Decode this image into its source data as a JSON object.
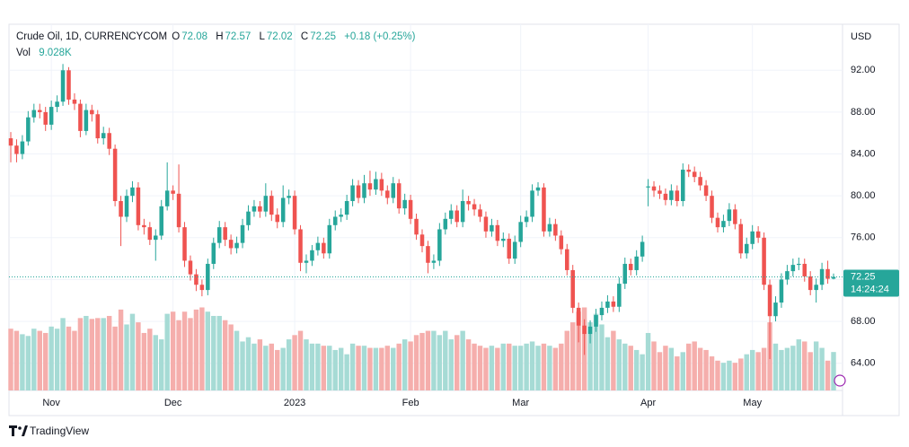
{
  "chart_data": {
    "type": "candlestick",
    "title": "Crude Oil, 1D, CURRENCYCOM",
    "ohlc_labels": [
      "O",
      "H",
      "L",
      "C"
    ],
    "change_label": "+0.18 (+0.25%)",
    "currency": "USD",
    "countdown": "14:24:24",
    "open": [
      85.5,
      84.8,
      84.0,
      85.2,
      87.5,
      88.2,
      88.0,
      86.8,
      88.5,
      89.0,
      92.0,
      89.2,
      88.8,
      86.2,
      88.2,
      87.8,
      85.5,
      86.0,
      84.5,
      79.5,
      78.0,
      80.0,
      80.8,
      77.2,
      77.0,
      75.8,
      76.2,
      79.0,
      80.5,
      80.2,
      77.0,
      73.8,
      72.5,
      71.5,
      71.0,
      73.5,
      75.5,
      77.0,
      75.8,
      75.0,
      75.5,
      77.2,
      78.5,
      79.0,
      78.5,
      80.0,
      78.2,
      77.5,
      79.8,
      80.0,
      76.8,
      73.6,
      73.8,
      74.8,
      75.5,
      74.5,
      77.2,
      78.0,
      78.2,
      79.5,
      81.0,
      79.8,
      81.2,
      80.6,
      81.6,
      80.5,
      79.8,
      81.2,
      78.8,
      79.6,
      77.8,
      76.3,
      75.2,
      73.6,
      73.8,
      76.8,
      77.8,
      78.6,
      77.5,
      79.5,
      79.2,
      78.7,
      78.0,
      76.6,
      77.2,
      75.7,
      75.9,
      74.0,
      75.6,
      77.5,
      78.0,
      80.5,
      80.8,
      76.6,
      77.3,
      76.2,
      74.9,
      72.9,
      69.3,
      67.6,
      66.8,
      67.5,
      68.6,
      69.3,
      69.9,
      69.4,
      71.6,
      73.5,
      72.9,
      74.2,
      80.8,
      80.9,
      80.5,
      80.2,
      79.6,
      80.5,
      79.5,
      82.5,
      82.3,
      81.8,
      81.0,
      80.0,
      77.9,
      77.0,
      77.6,
      78.7,
      77.3,
      74.5,
      75.4,
      76.6,
      76.0,
      71.5,
      68.5,
      69.8,
      72.0,
      72.8,
      73.4,
      73.5,
      72.3,
      71.0,
      71.5,
      73.0,
      72.08
    ],
    "high": [
      86.1,
      85.4,
      85.8,
      88.1,
      88.8,
      88.8,
      88.5,
      89.1,
      89.6,
      92.6,
      92.3,
      89.8,
      89.2,
      88.8,
      88.7,
      88.2,
      86.6,
      86.5,
      84.9,
      80.0,
      80.6,
      81.4,
      81.3,
      77.8,
      77.5,
      76.8,
      79.6,
      83.2,
      81.0,
      83.0,
      77.5,
      74.3,
      73.0,
      72.0,
      74.0,
      76.0,
      77.6,
      77.5,
      76.3,
      76.1,
      77.8,
      79.1,
      79.6,
      79.5,
      81.2,
      80.5,
      78.8,
      81.0,
      80.6,
      80.5,
      77.2,
      74.4,
      75.3,
      76.1,
      76.0,
      77.8,
      78.6,
      78.8,
      80.1,
      81.6,
      81.5,
      82.0,
      82.4,
      82.3,
      82.2,
      81.0,
      81.8,
      81.6,
      80.2,
      80.1,
      78.3,
      76.8,
      75.7,
      74.4,
      77.4,
      78.4,
      79.2,
      79.1,
      80.6,
      80.0,
      79.7,
      79.2,
      78.5,
      77.8,
      77.7,
      76.5,
      76.4,
      76.2,
      78.1,
      78.6,
      81.1,
      81.3,
      81.2,
      77.9,
      77.8,
      76.7,
      75.4,
      73.4,
      69.8,
      68.2,
      68.1,
      69.2,
      69.9,
      70.5,
      70.4,
      72.2,
      74.1,
      74.0,
      74.8,
      76.2,
      81.6,
      81.4,
      81.0,
      80.7,
      81.1,
      81.0,
      83.1,
      83.0,
      82.8,
      82.3,
      81.5,
      80.5,
      78.4,
      78.2,
      79.3,
      79.2,
      77.8,
      76.0,
      77.2,
      77.1,
      76.5,
      72.0,
      70.4,
      72.6,
      73.4,
      74.0,
      74.1,
      74.0,
      72.8,
      72.1,
      73.6,
      73.8,
      72.57
    ],
    "low": [
      83.2,
      83.2,
      83.5,
      84.8,
      87.0,
      87.4,
      86.2,
      86.3,
      88.0,
      88.6,
      88.7,
      88.2,
      85.6,
      85.8,
      87.1,
      85.0,
      84.9,
      83.9,
      79.0,
      75.2,
      77.5,
      79.4,
      76.7,
      76.3,
      75.3,
      73.8,
      75.8,
      78.6,
      79.6,
      76.5,
      73.2,
      71.9,
      70.9,
      70.4,
      70.5,
      73.0,
      75.0,
      75.2,
      74.4,
      74.5,
      75.0,
      76.7,
      78.0,
      77.9,
      78.0,
      77.6,
      76.9,
      77.0,
      79.2,
      76.3,
      72.8,
      72.6,
      73.3,
      74.3,
      74.0,
      74.0,
      76.7,
      77.5,
      77.7,
      79.0,
      79.3,
      79.3,
      80.0,
      80.1,
      80.0,
      79.2,
      79.3,
      78.3,
      78.2,
      77.3,
      75.8,
      74.6,
      72.6,
      73.0,
      73.3,
      76.3,
      77.3,
      77.0,
      77.0,
      78.6,
      78.1,
      77.5,
      76.0,
      76.1,
      75.2,
      75.1,
      73.5,
      73.5,
      75.1,
      77.0,
      77.5,
      80.0,
      76.1,
      76.1,
      75.7,
      74.4,
      72.4,
      68.8,
      66.0,
      64.8,
      65.9,
      67.0,
      68.1,
      68.8,
      68.9,
      68.9,
      71.1,
      72.4,
      72.4,
      73.7,
      79.0,
      79.9,
      79.7,
      79.1,
      79.1,
      79.0,
      79.0,
      81.8,
      81.3,
      80.5,
      79.5,
      77.4,
      76.5,
      76.5,
      77.1,
      76.8,
      74.0,
      74.0,
      74.9,
      75.5,
      71.0,
      64.4,
      68.0,
      69.3,
      71.5,
      72.3,
      72.9,
      71.8,
      70.5,
      69.8,
      71.0,
      71.6,
      72.02
    ],
    "close": [
      84.8,
      84.0,
      85.2,
      87.5,
      88.2,
      88.0,
      86.8,
      88.5,
      89.0,
      92.0,
      89.2,
      88.8,
      86.2,
      88.2,
      87.8,
      85.5,
      86.0,
      84.5,
      79.5,
      78.0,
      80.0,
      80.8,
      77.2,
      77.0,
      75.8,
      76.2,
      79.0,
      80.5,
      80.2,
      77.0,
      73.8,
      72.5,
      71.5,
      71.0,
      73.5,
      75.5,
      77.0,
      75.8,
      75.0,
      75.5,
      77.2,
      78.5,
      79.0,
      78.5,
      80.0,
      78.2,
      77.5,
      79.8,
      80.0,
      76.8,
      73.6,
      73.8,
      74.8,
      75.5,
      74.5,
      77.2,
      78.0,
      78.2,
      79.5,
      81.0,
      79.8,
      81.2,
      80.6,
      81.6,
      80.5,
      79.8,
      81.2,
      78.8,
      79.6,
      77.8,
      76.3,
      75.2,
      73.6,
      73.8,
      76.8,
      77.8,
      78.6,
      77.5,
      79.5,
      79.2,
      78.7,
      78.0,
      76.6,
      77.2,
      75.7,
      75.9,
      74.0,
      75.6,
      77.5,
      78.0,
      80.5,
      80.8,
      76.6,
      77.3,
      76.2,
      74.9,
      72.9,
      69.3,
      67.6,
      66.8,
      67.5,
      68.6,
      69.3,
      69.9,
      69.4,
      71.6,
      73.5,
      72.9,
      74.2,
      75.6,
      80.9,
      80.5,
      80.2,
      79.6,
      80.5,
      79.5,
      82.5,
      82.3,
      81.8,
      81.0,
      80.0,
      77.9,
      77.0,
      77.6,
      78.7,
      77.3,
      74.5,
      75.4,
      76.6,
      76.0,
      71.5,
      68.5,
      69.8,
      72.0,
      72.8,
      73.4,
      73.5,
      72.3,
      71.0,
      71.5,
      73.0,
      72.07,
      72.25
    ],
    "up_color": "#26a69a",
    "down_color": "#ef5350",
    "volume": {
      "name": "Vol",
      "values": [
        14.5,
        14.0,
        13.2,
        12.8,
        14.5,
        14.0,
        13.5,
        15.0,
        14.5,
        17.0,
        15.0,
        14.0,
        17.0,
        17.5,
        16.8,
        17.0,
        17.0,
        17.5,
        15.0,
        19.0,
        15.5,
        18.0,
        16.0,
        13.5,
        14.5,
        13.0,
        12.0,
        18.0,
        18.5,
        16.5,
        18.5,
        17.0,
        19.0,
        19.5,
        18.5,
        17.5,
        17.5,
        16.5,
        15.5,
        14.0,
        11.5,
        12.5,
        11.0,
        12.0,
        10.5,
        11.0,
        9.5,
        10.0,
        12.0,
        13.0,
        14.0,
        12.0,
        11.0,
        11.0,
        10.5,
        10.5,
        9.5,
        10.0,
        8.5,
        11.0,
        10.5,
        10.5,
        10.0,
        10.0,
        10.0,
        10.5,
        10.0,
        11.0,
        12.0,
        11.5,
        13.0,
        13.5,
        14.0,
        14.0,
        13.0,
        14.0,
        12.0,
        13.0,
        14.0,
        12.0,
        11.0,
        10.5,
        10.0,
        10.5,
        10.0,
        11.0,
        11.0,
        10.5,
        10.5,
        11.0,
        11.5,
        10.5,
        11.0,
        10.5,
        10.0,
        11.0,
        14.0,
        16.0,
        18.5,
        19.5,
        16.0,
        18.0,
        15.5,
        12.5,
        14.0,
        12.0,
        11.0,
        10.5,
        9.5,
        8.5,
        13.5,
        11.5,
        9.0,
        10.5,
        10.0,
        8.0,
        9.0,
        11.0,
        11.5,
        10.0,
        9.5,
        8.0,
        7.0,
        6.5,
        7.0,
        6.5,
        7.5,
        8.5,
        9.5,
        9.0,
        10.0,
        16.0,
        11.0,
        9.5,
        10.0,
        10.5,
        12.0,
        11.5,
        9.0,
        11.5,
        10.0,
        7.0,
        9.028
      ],
      "last_label": "9.028K",
      "ylim": [
        0,
        86
      ],
      "up_color": "#a6dbd5",
      "down_color": "#f5aeac"
    },
    "ylim": [
      61.4,
      96.4
    ],
    "yticks": [
      {
        "value": 64,
        "label": "64.00"
      },
      {
        "value": 68,
        "label": "68.00"
      },
      {
        "value": 72,
        "label": "72.00"
      },
      {
        "value": 76,
        "label": "76.00"
      },
      {
        "value": 80,
        "label": "80.00"
      },
      {
        "value": 84,
        "label": "84.00"
      },
      {
        "value": 88,
        "label": "88.00"
      },
      {
        "value": 92,
        "label": "92.00"
      }
    ],
    "xticks": [
      {
        "value": 7,
        "label": "Nov"
      },
      {
        "value": 28,
        "label": "Dec"
      },
      {
        "value": 49,
        "label": "2023"
      },
      {
        "value": 69,
        "label": "Feb"
      },
      {
        "value": 88,
        "label": "Mar"
      },
      {
        "value": 110,
        "label": "Apr"
      },
      {
        "value": 128,
        "label": "May"
      }
    ],
    "grid": true
  },
  "brand": "TradingView"
}
